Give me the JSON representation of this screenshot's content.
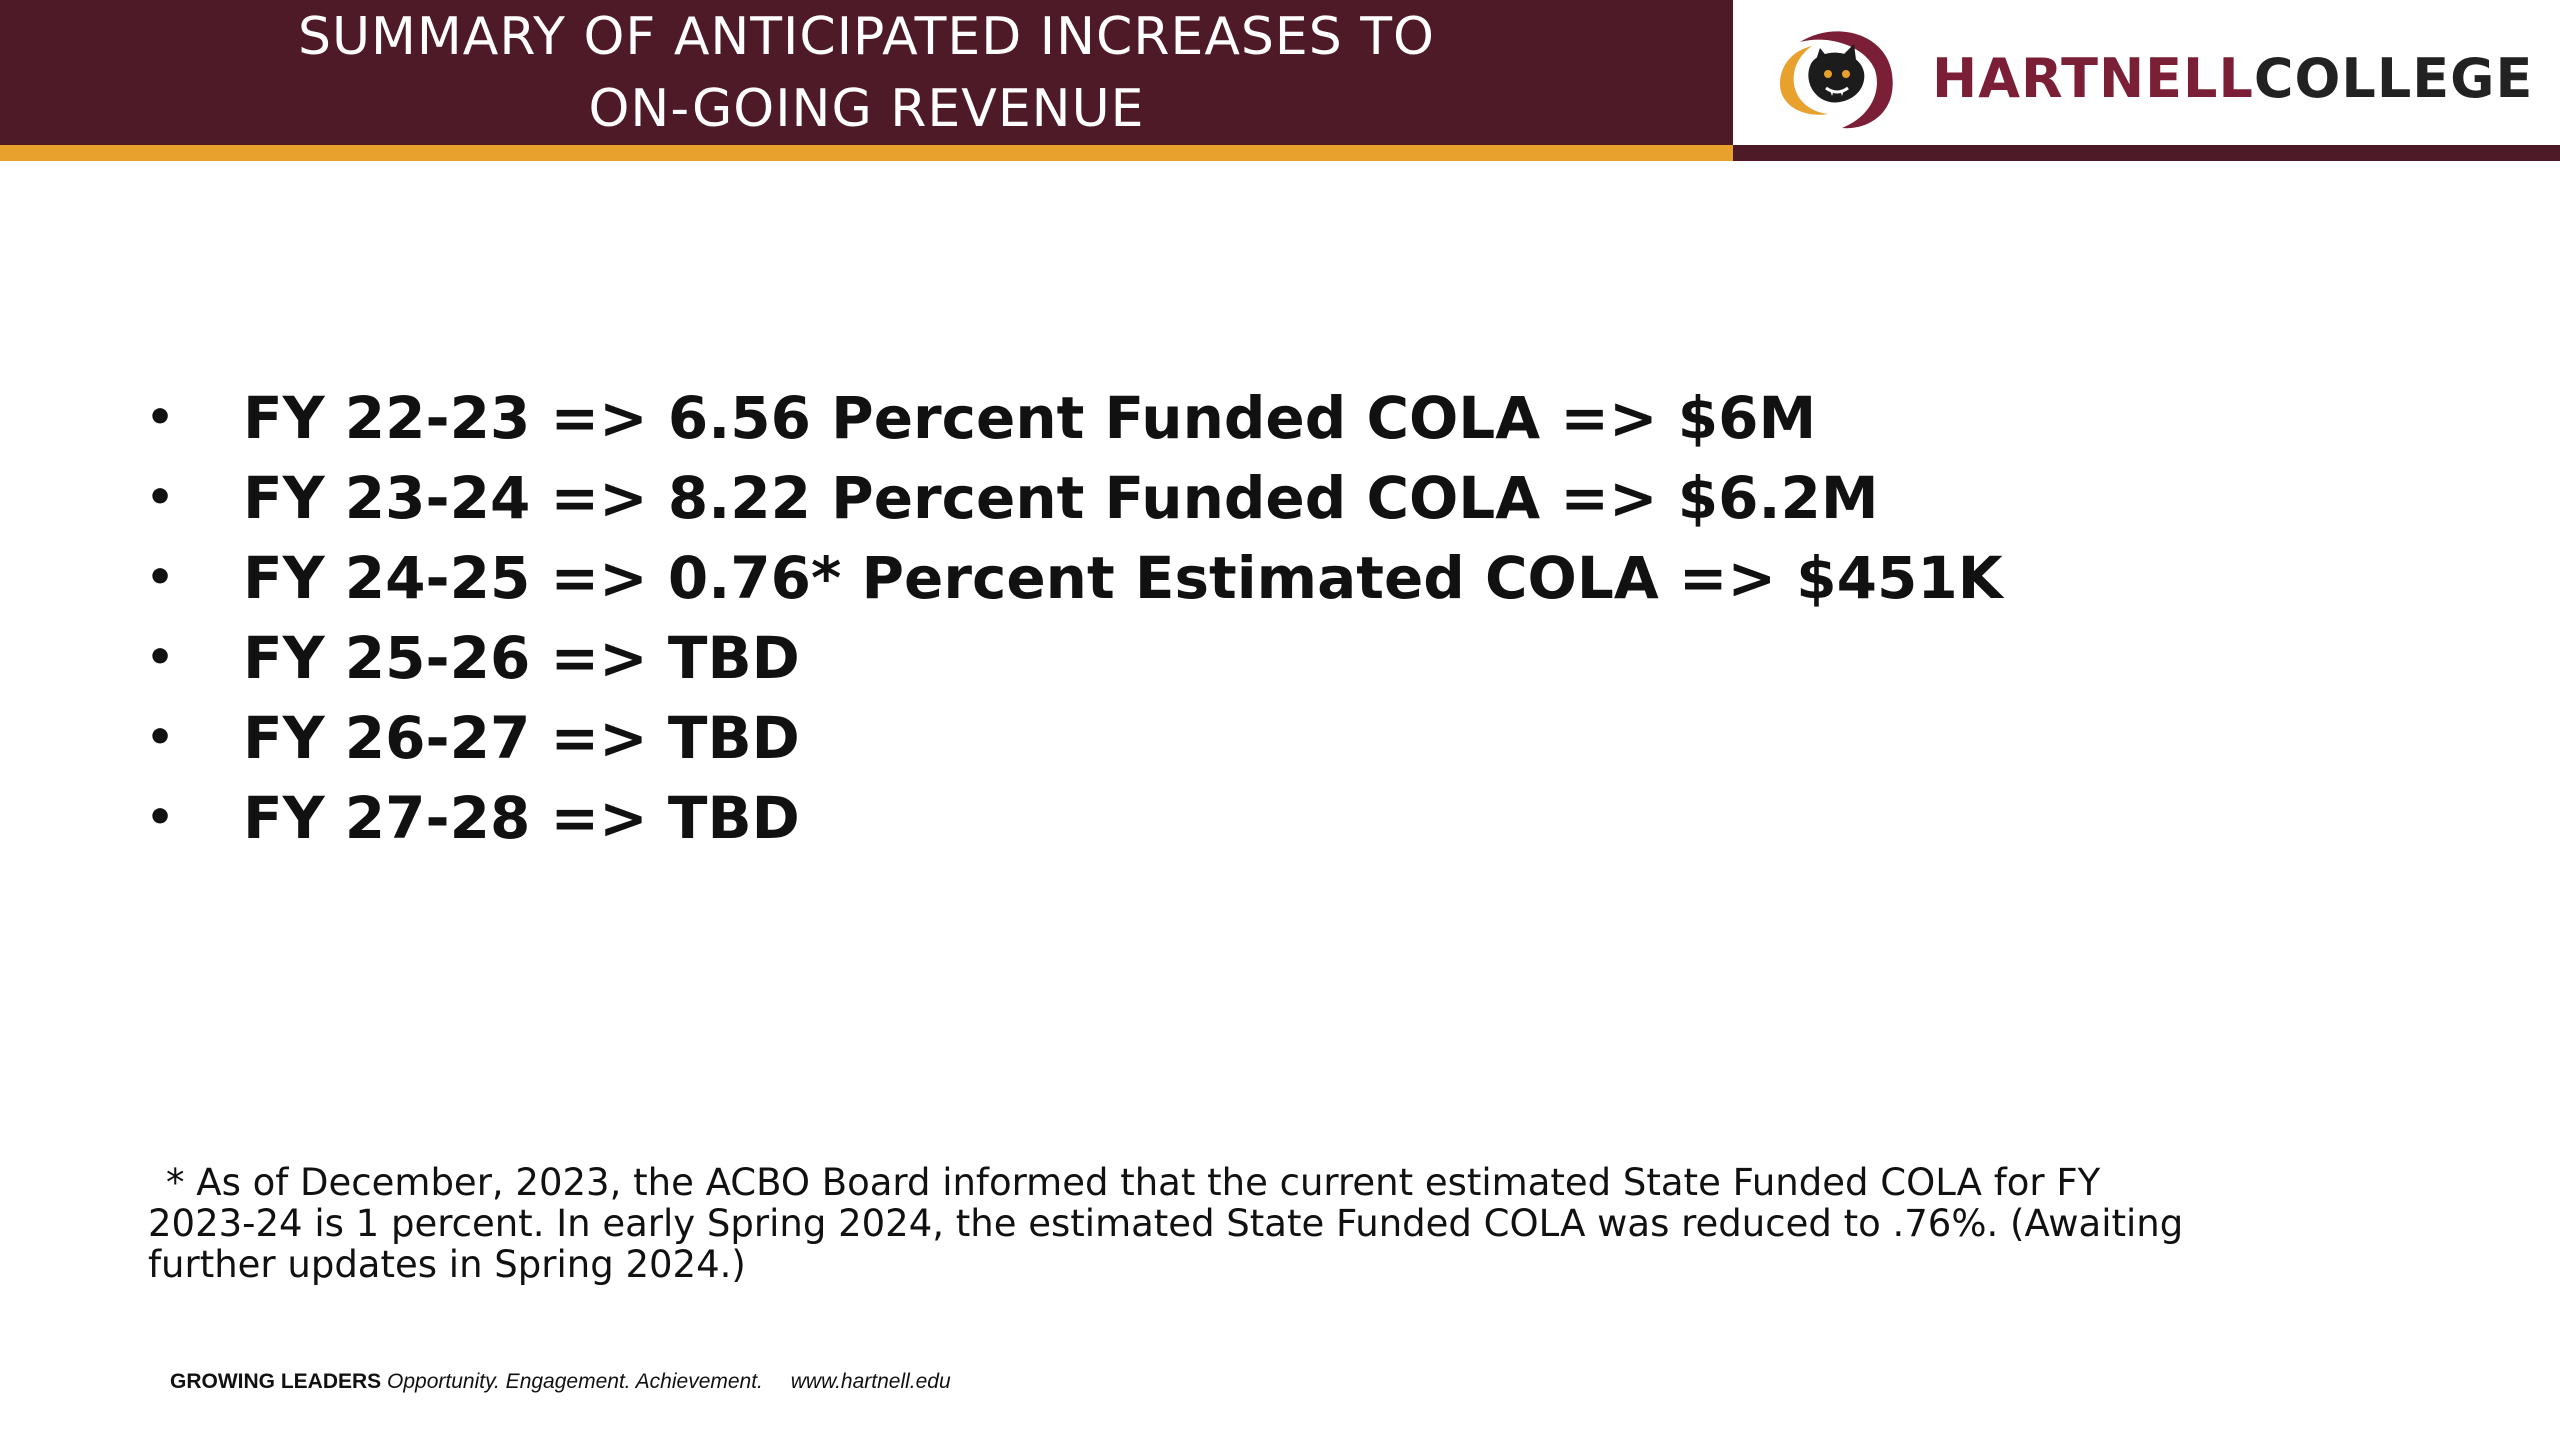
{
  "header": {
    "title_line1": "SUMMARY OF ANTICIPATED INCREASES TO",
    "title_line2": "ON-GOING REVENUE"
  },
  "logo": {
    "icon": "panther-logo-icon",
    "name_part1": "HARTNELL",
    "name_part2": "COLLEGE"
  },
  "bullets": [
    {
      "text": "FY 22-23  => 6.56 Percent Funded COLA  =>  $6M"
    },
    {
      "text": "FY 23-24  => 8.22 Percent Funded COLA  => $6.2M"
    },
    {
      "text": "FY 24-25 => 0.76* Percent Estimated COLA => $451K"
    },
    {
      "text": "FY 25-26 =>  TBD"
    },
    {
      "text": "FY 26-27 =>  TBD"
    },
    {
      "text": "FY 27-28 =>  TBD"
    }
  ],
  "bullet_symbol": "•",
  "footnote": {
    "line1": "* As of December, 2023, the ACBO Board informed that the current estimated State Funded COLA for FY",
    "line2": "2023-24 is 1 percent.  In early Spring 2024, the estimated State Funded COLA was reduced to .76%.  (Awaiting",
    "line3": "further updates in Spring 2024.)"
  },
  "footer": {
    "tagline_bold": "GROWING LEADERS",
    "tagline_italic": "Opportunity. Engagement. Achievement.",
    "url": "www.hartnell.edu"
  },
  "colors": {
    "maroon": "#4f1a28",
    "gold": "#e8a12c",
    "logo_maroon": "#7a1f35"
  }
}
